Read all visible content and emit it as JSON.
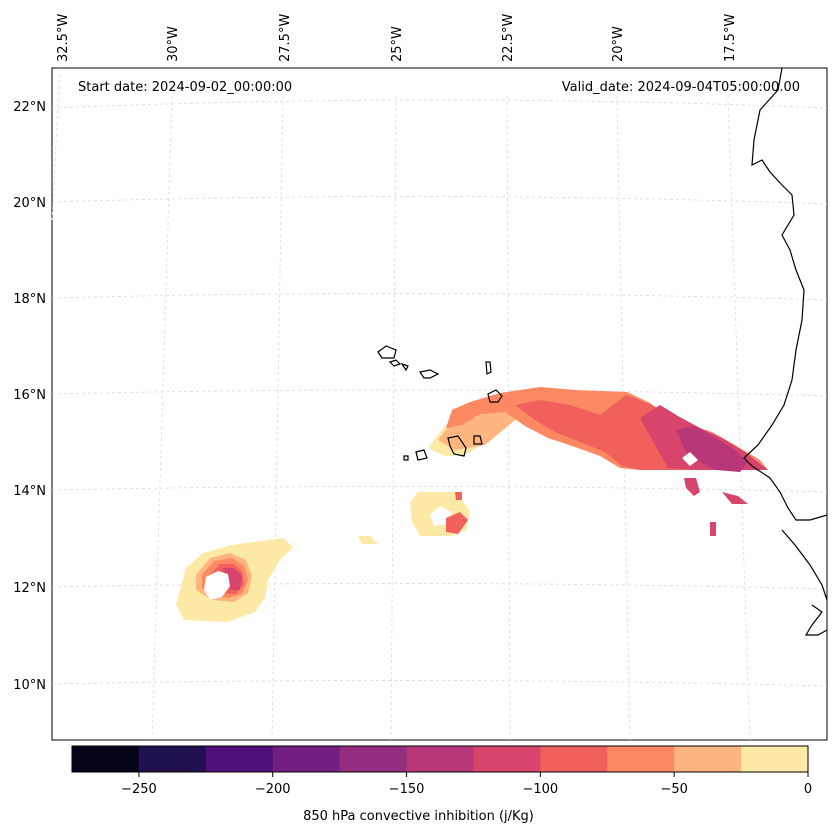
{
  "header": {
    "start_date": "Start date: 2024-09-02_00:00:00",
    "valid_date": "Valid_date: 2024-09-04T05:00:00.00"
  },
  "axes": {
    "lon_labels": [
      "32.5°W",
      "30°W",
      "27.5°W",
      "25°W",
      "22.5°W",
      "20°W",
      "17.5°W"
    ],
    "lat_labels": [
      "22°N",
      "20°N",
      "18°N",
      "16°N",
      "14°N",
      "12°N",
      "10°N"
    ]
  },
  "colorbar": {
    "title": "850 hPa convective inhibition (j/Kg)",
    "tick_labels": [
      "−250",
      "−200",
      "−150",
      "−100",
      "−50",
      "0"
    ],
    "levels": [
      -275,
      -250,
      -225,
      -200,
      -175,
      -150,
      -125,
      -100,
      -75,
      -50,
      -25,
      0
    ],
    "colors": [
      "#050418",
      "#221150",
      "#4f1179",
      "#721f81",
      "#942c80",
      "#b73779",
      "#d8456c",
      "#f1605d",
      "#fc8961",
      "#feb57f",
      "#fde9a6"
    ]
  },
  "map_data": {
    "variable": "850 hPa convective inhibition",
    "units": "j/Kg",
    "regions": [
      "Cabo Verde islands",
      "West African coast"
    ]
  }
}
